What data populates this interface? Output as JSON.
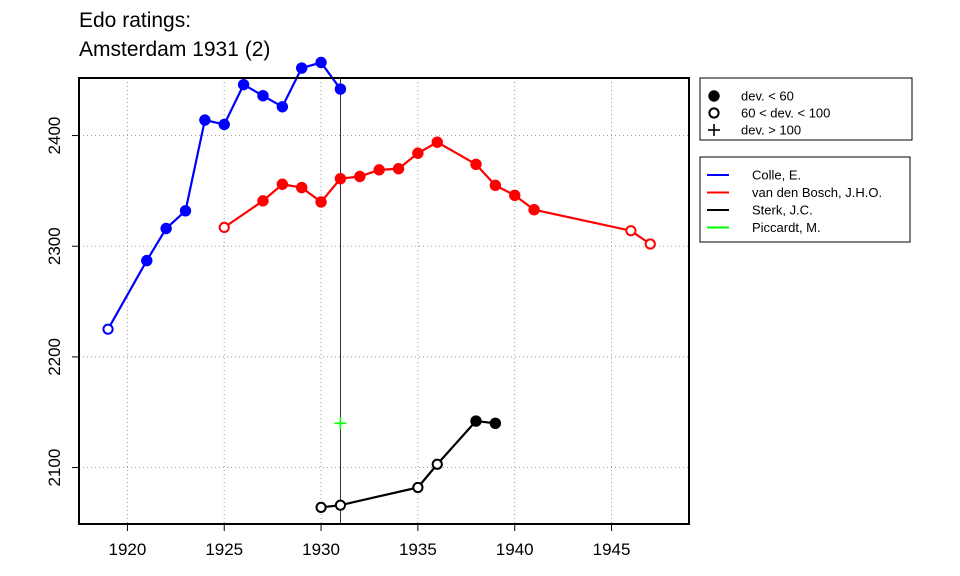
{
  "title": [
    "Edo ratings:",
    "Amsterdam 1931 (2)"
  ],
  "chart_data": {
    "type": "line",
    "title": "Edo ratings: Amsterdam 1931 (2)",
    "xlabel": "",
    "ylabel": "",
    "xlim": [
      1917.5,
      1949
    ],
    "ylim": [
      2049,
      2452
    ],
    "x_ticks": [
      1920,
      1925,
      1930,
      1935,
      1940,
      1945
    ],
    "y_ticks": [
      2100,
      2200,
      2300,
      2400
    ],
    "grid": true,
    "reference_line_x": 1931,
    "legend_position": "top-right, outside plot",
    "symbol_legend": [
      {
        "symbol": "filled-circle",
        "label": "dev. < 60"
      },
      {
        "symbol": "open-circle",
        "label": "60 < dev. < 100"
      },
      {
        "symbol": "plus",
        "label": "dev. > 100"
      }
    ],
    "series": [
      {
        "name": "Colle, E.",
        "color": "#0000ff",
        "points": [
          {
            "x": 1919,
            "y": 2225,
            "m": "open"
          },
          {
            "x": 1921,
            "y": 2287,
            "m": "filled"
          },
          {
            "x": 1922,
            "y": 2316,
            "m": "filled"
          },
          {
            "x": 1923,
            "y": 2332,
            "m": "filled"
          },
          {
            "x": 1924,
            "y": 2414,
            "m": "filled"
          },
          {
            "x": 1925,
            "y": 2410,
            "m": "filled"
          },
          {
            "x": 1926,
            "y": 2446,
            "m": "filled"
          },
          {
            "x": 1927,
            "y": 2436,
            "m": "filled"
          },
          {
            "x": 1928,
            "y": 2426,
            "m": "filled"
          },
          {
            "x": 1929,
            "y": 2461,
            "m": "filled"
          },
          {
            "x": 1930,
            "y": 2466,
            "m": "filled"
          },
          {
            "x": 1931,
            "y": 2442,
            "m": "filled"
          }
        ]
      },
      {
        "name": "van den Bosch, J.H.O.",
        "color": "#ff0000",
        "points": [
          {
            "x": 1925,
            "y": 2317,
            "m": "open"
          },
          {
            "x": 1927,
            "y": 2341,
            "m": "filled"
          },
          {
            "x": 1928,
            "y": 2356,
            "m": "filled"
          },
          {
            "x": 1929,
            "y": 2353,
            "m": "filled"
          },
          {
            "x": 1930,
            "y": 2340,
            "m": "filled"
          },
          {
            "x": 1931,
            "y": 2361,
            "m": "filled"
          },
          {
            "x": 1932,
            "y": 2363,
            "m": "filled"
          },
          {
            "x": 1933,
            "y": 2369,
            "m": "filled"
          },
          {
            "x": 1934,
            "y": 2370,
            "m": "filled"
          },
          {
            "x": 1935,
            "y": 2384,
            "m": "filled"
          },
          {
            "x": 1936,
            "y": 2394,
            "m": "filled"
          },
          {
            "x": 1938,
            "y": 2374,
            "m": "filled"
          },
          {
            "x": 1939,
            "y": 2355,
            "m": "filled"
          },
          {
            "x": 1940,
            "y": 2346,
            "m": "filled"
          },
          {
            "x": 1941,
            "y": 2333,
            "m": "filled"
          },
          {
            "x": 1946,
            "y": 2314,
            "m": "open"
          },
          {
            "x": 1947,
            "y": 2302,
            "m": "open"
          }
        ]
      },
      {
        "name": "Sterk, J.C.",
        "color": "#000000",
        "points": [
          {
            "x": 1930,
            "y": 2064,
            "m": "open"
          },
          {
            "x": 1931,
            "y": 2066,
            "m": "open"
          },
          {
            "x": 1935,
            "y": 2082,
            "m": "open"
          },
          {
            "x": 1936,
            "y": 2103,
            "m": "open"
          },
          {
            "x": 1938,
            "y": 2142,
            "m": "filled"
          },
          {
            "x": 1939,
            "y": 2140,
            "m": "filled"
          }
        ]
      },
      {
        "name": "Piccardt, M.",
        "color": "#00ff00",
        "points": [
          {
            "x": 1931,
            "y": 2140,
            "m": "plus"
          }
        ]
      }
    ]
  }
}
